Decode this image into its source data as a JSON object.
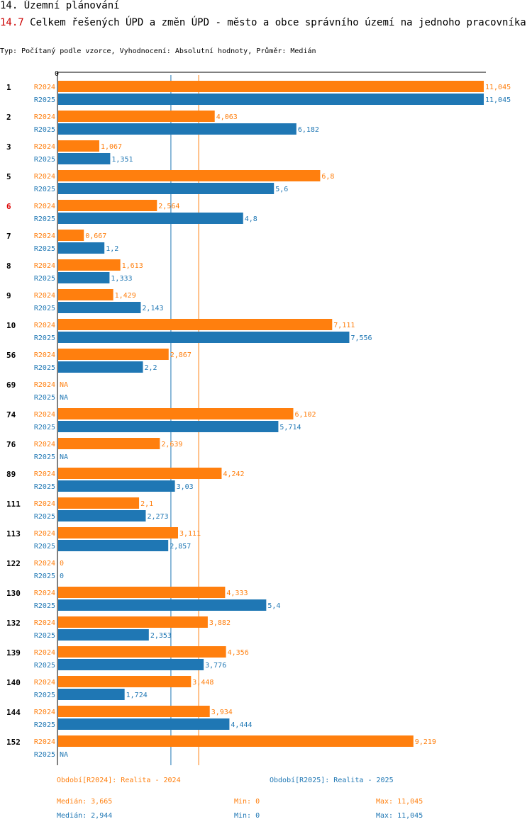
{
  "header": {
    "section": "14. Územní plánování",
    "indicator_num": "14.7",
    "indicator_title": " Celkem řešených ÚPD a změn ÚPD - město a obce správního území  na jednoho pracovníka",
    "subtitle": "Typ: Počítaný podle vzorce, Vyhodnocení: Absolutní hodnoty, Průměr: Medián"
  },
  "colors": {
    "r2024": "#ff7f0e",
    "r2025": "#1f77b4",
    "highlight": "#dd0000",
    "axis": "#000000"
  },
  "chart_data": {
    "type": "bar",
    "orientation": "horizontal",
    "axis_zero_label": "0",
    "xlim": [
      0,
      11.045
    ],
    "series": [
      {
        "name": "R2024",
        "label": "R2024"
      },
      {
        "name": "R2025",
        "label": "R2025"
      }
    ],
    "categories": [
      {
        "id": "1",
        "highlight": false,
        "R2024": 11.045,
        "R2024_label": "11,045",
        "R2025": 11.045,
        "R2025_label": "11,045"
      },
      {
        "id": "2",
        "highlight": false,
        "R2024": 4.063,
        "R2024_label": "4,063",
        "R2025": 6.182,
        "R2025_label": "6,182"
      },
      {
        "id": "3",
        "highlight": false,
        "R2024": 1.067,
        "R2024_label": "1,067",
        "R2025": 1.351,
        "R2025_label": "1,351"
      },
      {
        "id": "5",
        "highlight": false,
        "R2024": 6.8,
        "R2024_label": "6,8",
        "R2025": 5.6,
        "R2025_label": "5,6"
      },
      {
        "id": "6",
        "highlight": true,
        "R2024": 2.564,
        "R2024_label": "2,564",
        "R2025": 4.8,
        "R2025_label": "4,8"
      },
      {
        "id": "7",
        "highlight": false,
        "R2024": 0.667,
        "R2024_label": "0,667",
        "R2025": 1.2,
        "R2025_label": "1,2"
      },
      {
        "id": "8",
        "highlight": false,
        "R2024": 1.613,
        "R2024_label": "1,613",
        "R2025": 1.333,
        "R2025_label": "1,333"
      },
      {
        "id": "9",
        "highlight": false,
        "R2024": 1.429,
        "R2024_label": "1,429",
        "R2025": 2.143,
        "R2025_label": "2,143"
      },
      {
        "id": "10",
        "highlight": false,
        "R2024": 7.111,
        "R2024_label": "7,111",
        "R2025": 7.556,
        "R2025_label": "7,556"
      },
      {
        "id": "56",
        "highlight": false,
        "R2024": 2.867,
        "R2024_label": "2,867",
        "R2025": 2.2,
        "R2025_label": "2,2"
      },
      {
        "id": "69",
        "highlight": false,
        "R2024": null,
        "R2024_label": "NA",
        "R2025": null,
        "R2025_label": "NA"
      },
      {
        "id": "74",
        "highlight": false,
        "R2024": 6.102,
        "R2024_label": "6,102",
        "R2025": 5.714,
        "R2025_label": "5,714"
      },
      {
        "id": "76",
        "highlight": false,
        "R2024": 2.639,
        "R2024_label": "2,639",
        "R2025": null,
        "R2025_label": "NA"
      },
      {
        "id": "89",
        "highlight": false,
        "R2024": 4.242,
        "R2024_label": "4,242",
        "R2025": 3.03,
        "R2025_label": "3,03"
      },
      {
        "id": "111",
        "highlight": false,
        "R2024": 2.1,
        "R2024_label": "2,1",
        "R2025": 2.273,
        "R2025_label": "2,273"
      },
      {
        "id": "113",
        "highlight": false,
        "R2024": 3.111,
        "R2024_label": "3,111",
        "R2025": 2.857,
        "R2025_label": "2,857"
      },
      {
        "id": "122",
        "highlight": false,
        "R2024": 0,
        "R2024_label": "0",
        "R2025": 0,
        "R2025_label": "0"
      },
      {
        "id": "130",
        "highlight": false,
        "R2024": 4.333,
        "R2024_label": "4,333",
        "R2025": 5.4,
        "R2025_label": "5,4"
      },
      {
        "id": "132",
        "highlight": false,
        "R2024": 3.882,
        "R2024_label": "3,882",
        "R2025": 2.353,
        "R2025_label": "2,353"
      },
      {
        "id": "139",
        "highlight": false,
        "R2024": 4.356,
        "R2024_label": "4,356",
        "R2025": 3.776,
        "R2025_label": "3,776"
      },
      {
        "id": "140",
        "highlight": false,
        "R2024": 3.448,
        "R2024_label": "3,448",
        "R2025": 1.724,
        "R2025_label": "1,724"
      },
      {
        "id": "144",
        "highlight": false,
        "R2024": 3.934,
        "R2024_label": "3,934",
        "R2025": 4.444,
        "R2025_label": "4,444"
      },
      {
        "id": "152",
        "highlight": false,
        "R2024": 9.219,
        "R2024_label": "9,219",
        "R2025": null,
        "R2025_label": "NA"
      }
    ],
    "reference_lines": [
      {
        "series": "R2025",
        "value": 2.944
      },
      {
        "series": "R2024",
        "value": 3.665
      }
    ]
  },
  "legend": {
    "r2024_name": "Období[R2024]: Realita - 2024",
    "r2025_name": "Období[R2025]: Realita - 2025",
    "r2024_median": "Medián: 3,665",
    "r2024_min": "Min: 0",
    "r2024_max": "Max: 11,045",
    "r2025_median": "Medián: 2,944",
    "r2025_min": "Min: 0",
    "r2025_max": "Max: 11,045"
  }
}
